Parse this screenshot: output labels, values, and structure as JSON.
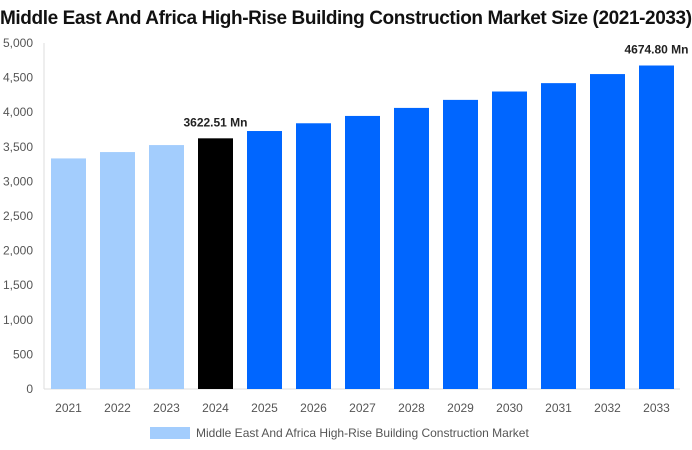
{
  "chart_data": {
    "type": "bar",
    "title": "Middle East And Africa High-Rise Building Construction Market Size (2021-2033)",
    "categories": [
      "2021",
      "2022",
      "2023",
      "2024",
      "2025",
      "2026",
      "2027",
      "2028",
      "2029",
      "2030",
      "2031",
      "2032",
      "2033"
    ],
    "series": [
      {
        "name": "Middle East And Africa High-Rise Building Construction Market",
        "values": [
          3332,
          3424,
          3525,
          3622.51,
          3728,
          3840,
          3946,
          4062,
          4178,
          4299,
          4420,
          4551,
          4674.8
        ]
      }
    ],
    "bar_colors": [
      "#a3cdfd",
      "#a3cdfd",
      "#a3cdfd",
      "#000000",
      "#0066ff",
      "#0066ff",
      "#0066ff",
      "#0066ff",
      "#0066ff",
      "#0066ff",
      "#0066ff",
      "#0066ff",
      "#0066ff"
    ],
    "data_labels": {
      "3": "3622.51 Mn",
      "12": "4674.80 Mn"
    },
    "ylim": [
      0,
      5000
    ],
    "yticks": [
      "0",
      "500",
      "1,000",
      "1,500",
      "2,000",
      "2,500",
      "3,000",
      "3,500",
      "4,000",
      "4,500",
      "5,000"
    ],
    "xlabel": "",
    "ylabel": "",
    "grid": false,
    "legend_position": "bottom",
    "legend_color": "#a3cdfd"
  }
}
